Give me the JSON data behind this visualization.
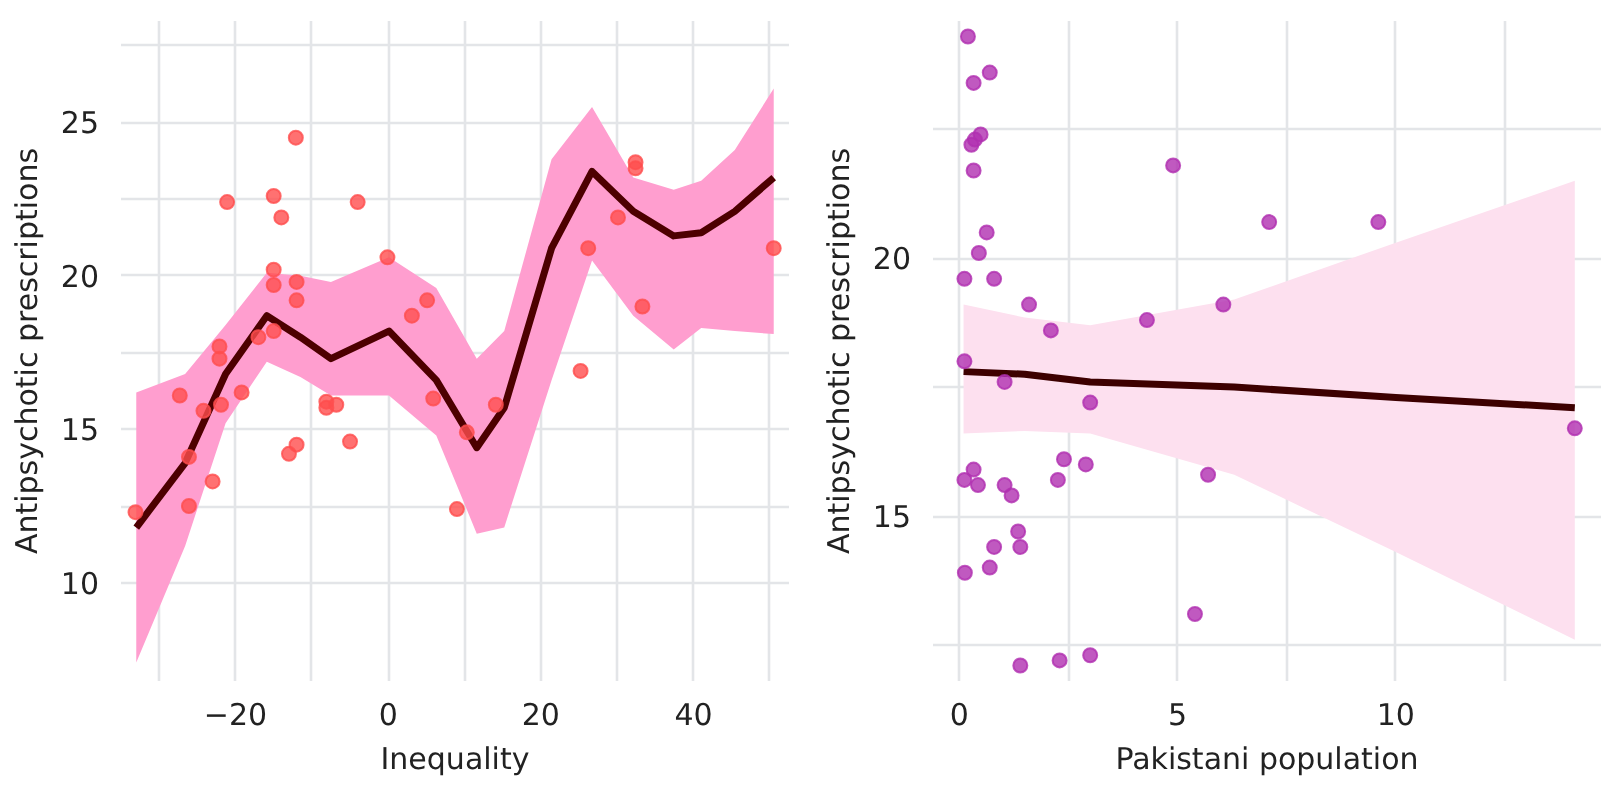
{
  "chart_data": [
    {
      "type": "scatter",
      "xlabel": "Inequality",
      "ylabel": "Antipsychotic prescriptions",
      "xlim": [
        -35,
        52.5
      ],
      "ylim": [
        6.8,
        28.3
      ],
      "xticks": [
        {
          "value": -30,
          "label": null
        },
        {
          "value": -20,
          "label": "−20"
        },
        {
          "value": -10,
          "label": null
        },
        0,
        {
          "value": 10,
          "label": null
        },
        20,
        {
          "value": 30,
          "label": null
        },
        40,
        {
          "value": 50,
          "label": null
        }
      ],
      "yticks": [
        10,
        {
          "value": 12.5,
          "label": null
        },
        15,
        {
          "value": 17.5,
          "label": null
        },
        20,
        {
          "value": 22.5,
          "label": null
        },
        25,
        {
          "value": 27.5,
          "label": null
        }
      ],
      "grid": true,
      "series": [
        {
          "type": "line",
          "color": "#4d0000",
          "x": [
            -33,
            -26.6,
            -21.3,
            -15.9,
            -11.5,
            -7.5,
            0.1,
            6.3,
            11.6,
            15.2,
            21.4,
            26.7,
            32.1,
            37.4,
            41,
            45.4,
            50.5
          ],
          "values": [
            11.8,
            13.9,
            16.8,
            18.7,
            18.0,
            17.3,
            18.2,
            16.6,
            14.4,
            15.7,
            20.9,
            23.4,
            22.1,
            21.3,
            21.4,
            22.1,
            23.2
          ],
          "lower": [
            7.4,
            11.2,
            15.2,
            17.2,
            16.7,
            16.1,
            16.1,
            14.8,
            11.6,
            11.8,
            16.6,
            20.5,
            18.7,
            17.6,
            18.3,
            18.2,
            18.1
          ],
          "upper": [
            16.2,
            16.8,
            18.4,
            20.1,
            20.0,
            19.8,
            20.6,
            19.6,
            17.3,
            18.2,
            23.8,
            25.5,
            23.2,
            22.8,
            23.1,
            24.1,
            26.1
          ]
        },
        {
          "marker": "circle",
          "color": "#ff4d4d",
          "x": [
            -33.1,
            -27.3,
            -26.1,
            -26.1,
            -24.2,
            -23.0,
            -22.1,
            -22.1,
            -21.9,
            -21.1,
            -19.2,
            -17.0,
            -15.0,
            -15.0,
            -15.0,
            -15.0,
            -14.0,
            -12.1,
            -12.0,
            -12.0,
            -13.0,
            -12.0,
            -8.1,
            -8.1,
            -6.8,
            -5.0,
            -4.0,
            -0.1,
            3.1,
            5.1,
            5.9,
            10.3,
            9.0,
            14.1,
            25.2,
            26.2,
            30.1,
            32.4,
            32.4,
            33.3,
            50.5
          ],
          "values": [
            12.3,
            16.1,
            14.1,
            12.5,
            15.6,
            13.3,
            17.7,
            17.3,
            15.8,
            22.4,
            16.2,
            18.0,
            22.6,
            20.2,
            19.7,
            18.2,
            21.9,
            24.5,
            19.8,
            19.2,
            14.2,
            14.5,
            15.9,
            15.7,
            15.8,
            14.6,
            22.4,
            20.6,
            18.7,
            19.2,
            16.0,
            14.9,
            12.4,
            15.8,
            16.9,
            20.9,
            21.9,
            23.7,
            23.5,
            19.0,
            20.9
          ]
        }
      ]
    },
    {
      "type": "scatter",
      "xlabel": "Pakistani population",
      "ylabel": "Antipsychotic prescriptions",
      "xlim": [
        -0.6,
        14.7
      ],
      "ylim": [
        11.8,
        24.6
      ],
      "xticks": [
        0,
        {
          "value": 2.5,
          "label": null
        },
        5,
        {
          "value": 7.5,
          "label": null
        },
        10,
        {
          "value": 12.5,
          "label": null
        }
      ],
      "yticks": [
        {
          "value": 12.5,
          "label": null
        },
        15,
        {
          "value": 17.5,
          "label": null
        },
        20,
        {
          "value": 22.5,
          "label": null
        }
      ],
      "grid": true,
      "series": [
        {
          "type": "line",
          "color": "#3d0000",
          "x": [
            0.1,
            1.5,
            3,
            6.3,
            10,
            14.1
          ],
          "values": [
            17.8,
            17.75,
            17.6,
            17.5,
            17.3,
            17.1
          ],
          "lower": [
            16.6,
            16.65,
            16.6,
            15.8,
            14.3,
            12.6
          ],
          "upper": [
            19.1,
            18.85,
            18.7,
            19.2,
            20.3,
            21.5
          ]
        },
        {
          "marker": "circle",
          "color": "#b030b0",
          "x": [
            0.2,
            0.33,
            0.7,
            0.28,
            0.36,
            0.49,
            0.33,
            0.63,
            0.45,
            0.12,
            0.8,
            1.6,
            2.1,
            0.12,
            1.04,
            3.0,
            4.3,
            4.9,
            0.12,
            0.33,
            0.43,
            1.04,
            1.2,
            2.4,
            2.26,
            2.9,
            1.35,
            1.4,
            0.8,
            0.7,
            0.13,
            5.4,
            1.4,
            2.3,
            3.0,
            5.7,
            6.05,
            7.1,
            9.6,
            14.1
          ],
          "values": [
            24.3,
            23.4,
            23.6,
            22.2,
            22.3,
            22.4,
            21.7,
            20.5,
            20.1,
            19.6,
            19.6,
            19.1,
            18.6,
            18.0,
            17.6,
            17.2,
            18.8,
            21.8,
            15.7,
            15.9,
            15.6,
            15.6,
            15.4,
            16.1,
            15.7,
            16.0,
            14.7,
            14.4,
            14.4,
            14.0,
            13.9,
            13.1,
            12.1,
            12.2,
            12.3,
            15.8,
            19.1,
            20.7,
            20.7,
            16.7
          ]
        }
      ]
    }
  ]
}
